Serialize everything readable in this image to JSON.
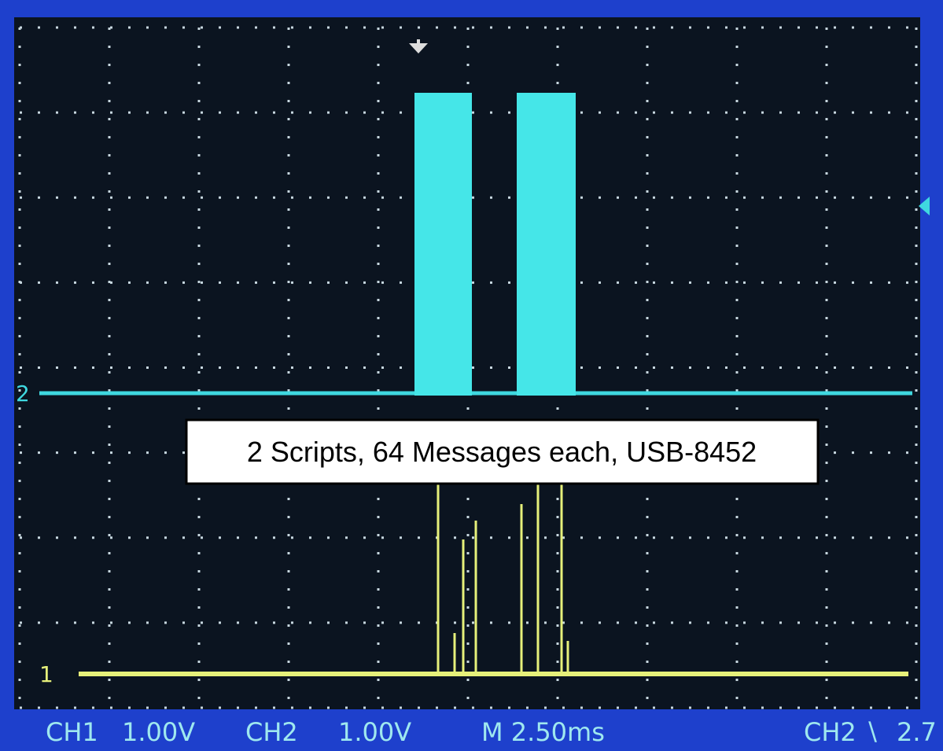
{
  "markers": {
    "ch2": "2",
    "ch1": "1"
  },
  "annotation": "2 Scripts, 64 Messages each, USB-8452",
  "status_bar": {
    "ch1_label": "CH1",
    "ch1_scale": "1.00V",
    "ch2_label": "CH2",
    "ch2_scale": "1.00V",
    "timebase": "M 2.50ms",
    "trigger_source": "CH2",
    "trigger_level": "2.7"
  }
}
